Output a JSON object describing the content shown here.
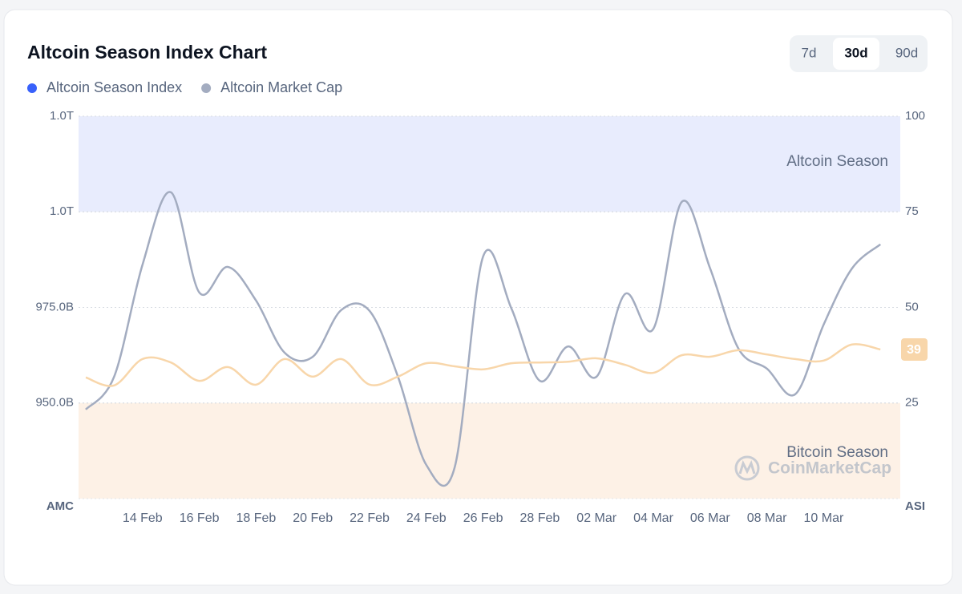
{
  "chart_data": {
    "type": "line",
    "title": "Altcoin Season Index Chart",
    "range_options": [
      "7d",
      "30d",
      "90d"
    ],
    "active_range": 1,
    "ylabel": "AMC",
    "y2label": "ASI",
    "watermark": "CoinMarketCap",
    "categories": [
      null,
      null,
      "14 Feb",
      null,
      "16 Feb",
      null,
      "18 Feb",
      null,
      "20 Feb",
      null,
      "22 Feb",
      null,
      "24 Feb",
      null,
      "26 Feb",
      null,
      "28 Feb",
      null,
      "02 Mar",
      null,
      "04 Mar",
      null,
      "06 Mar",
      null,
      "08 Mar",
      null,
      "10 Mar",
      null,
      null
    ],
    "ylim": [
      925,
      1025
    ],
    "yticks": [
      {
        "value": 950,
        "label": "950.0B"
      },
      {
        "value": 975,
        "label": "975.0B"
      },
      {
        "value": 1000,
        "label": "1.0T"
      },
      {
        "value": 1025,
        "label": "1.0T"
      }
    ],
    "y2lim": [
      0,
      100
    ],
    "y2ticks": [
      25,
      50,
      75,
      100
    ],
    "grid": true,
    "bands": [
      {
        "label": "Altcoin Season",
        "from": 75,
        "to": 100,
        "color": "#e8ecfd"
      },
      {
        "label": "Bitcoin Season",
        "from": 0,
        "to": 25,
        "color": "#fdf1e6"
      }
    ],
    "current_value": 39,
    "series": [
      {
        "name": "Altcoin Season Index",
        "color": "#3861fb",
        "line_color": "#f8d6aa",
        "axis": "y2",
        "values": [
          31.7,
          29.6,
          36.5,
          35.6,
          30.8,
          34.4,
          29.8,
          36.5,
          31.9,
          36.5,
          29.8,
          31.9,
          35.4,
          34.6,
          33.8,
          35.4,
          35.6,
          35.8,
          36.7,
          35.0,
          32.9,
          37.5,
          37.1,
          38.8,
          37.7,
          36.5,
          36.1,
          40.3,
          39
        ]
      },
      {
        "name": "Altcoin Market Cap",
        "color": "#a3acc0",
        "line_color": "#a3acc0",
        "axis": "y",
        "values": [
          948.3,
          956.9,
          986.2,
          1005.1,
          978.9,
          985.6,
          976.8,
          963.2,
          962.1,
          974.3,
          974.1,
          956.9,
          933.8,
          933.2,
          988.3,
          974.7,
          955.8,
          964.8,
          956.9,
          978.5,
          969.4,
          1002.6,
          985.2,
          964.2,
          959.0,
          952.3,
          970.5,
          985.2,
          991.5
        ]
      }
    ]
  }
}
